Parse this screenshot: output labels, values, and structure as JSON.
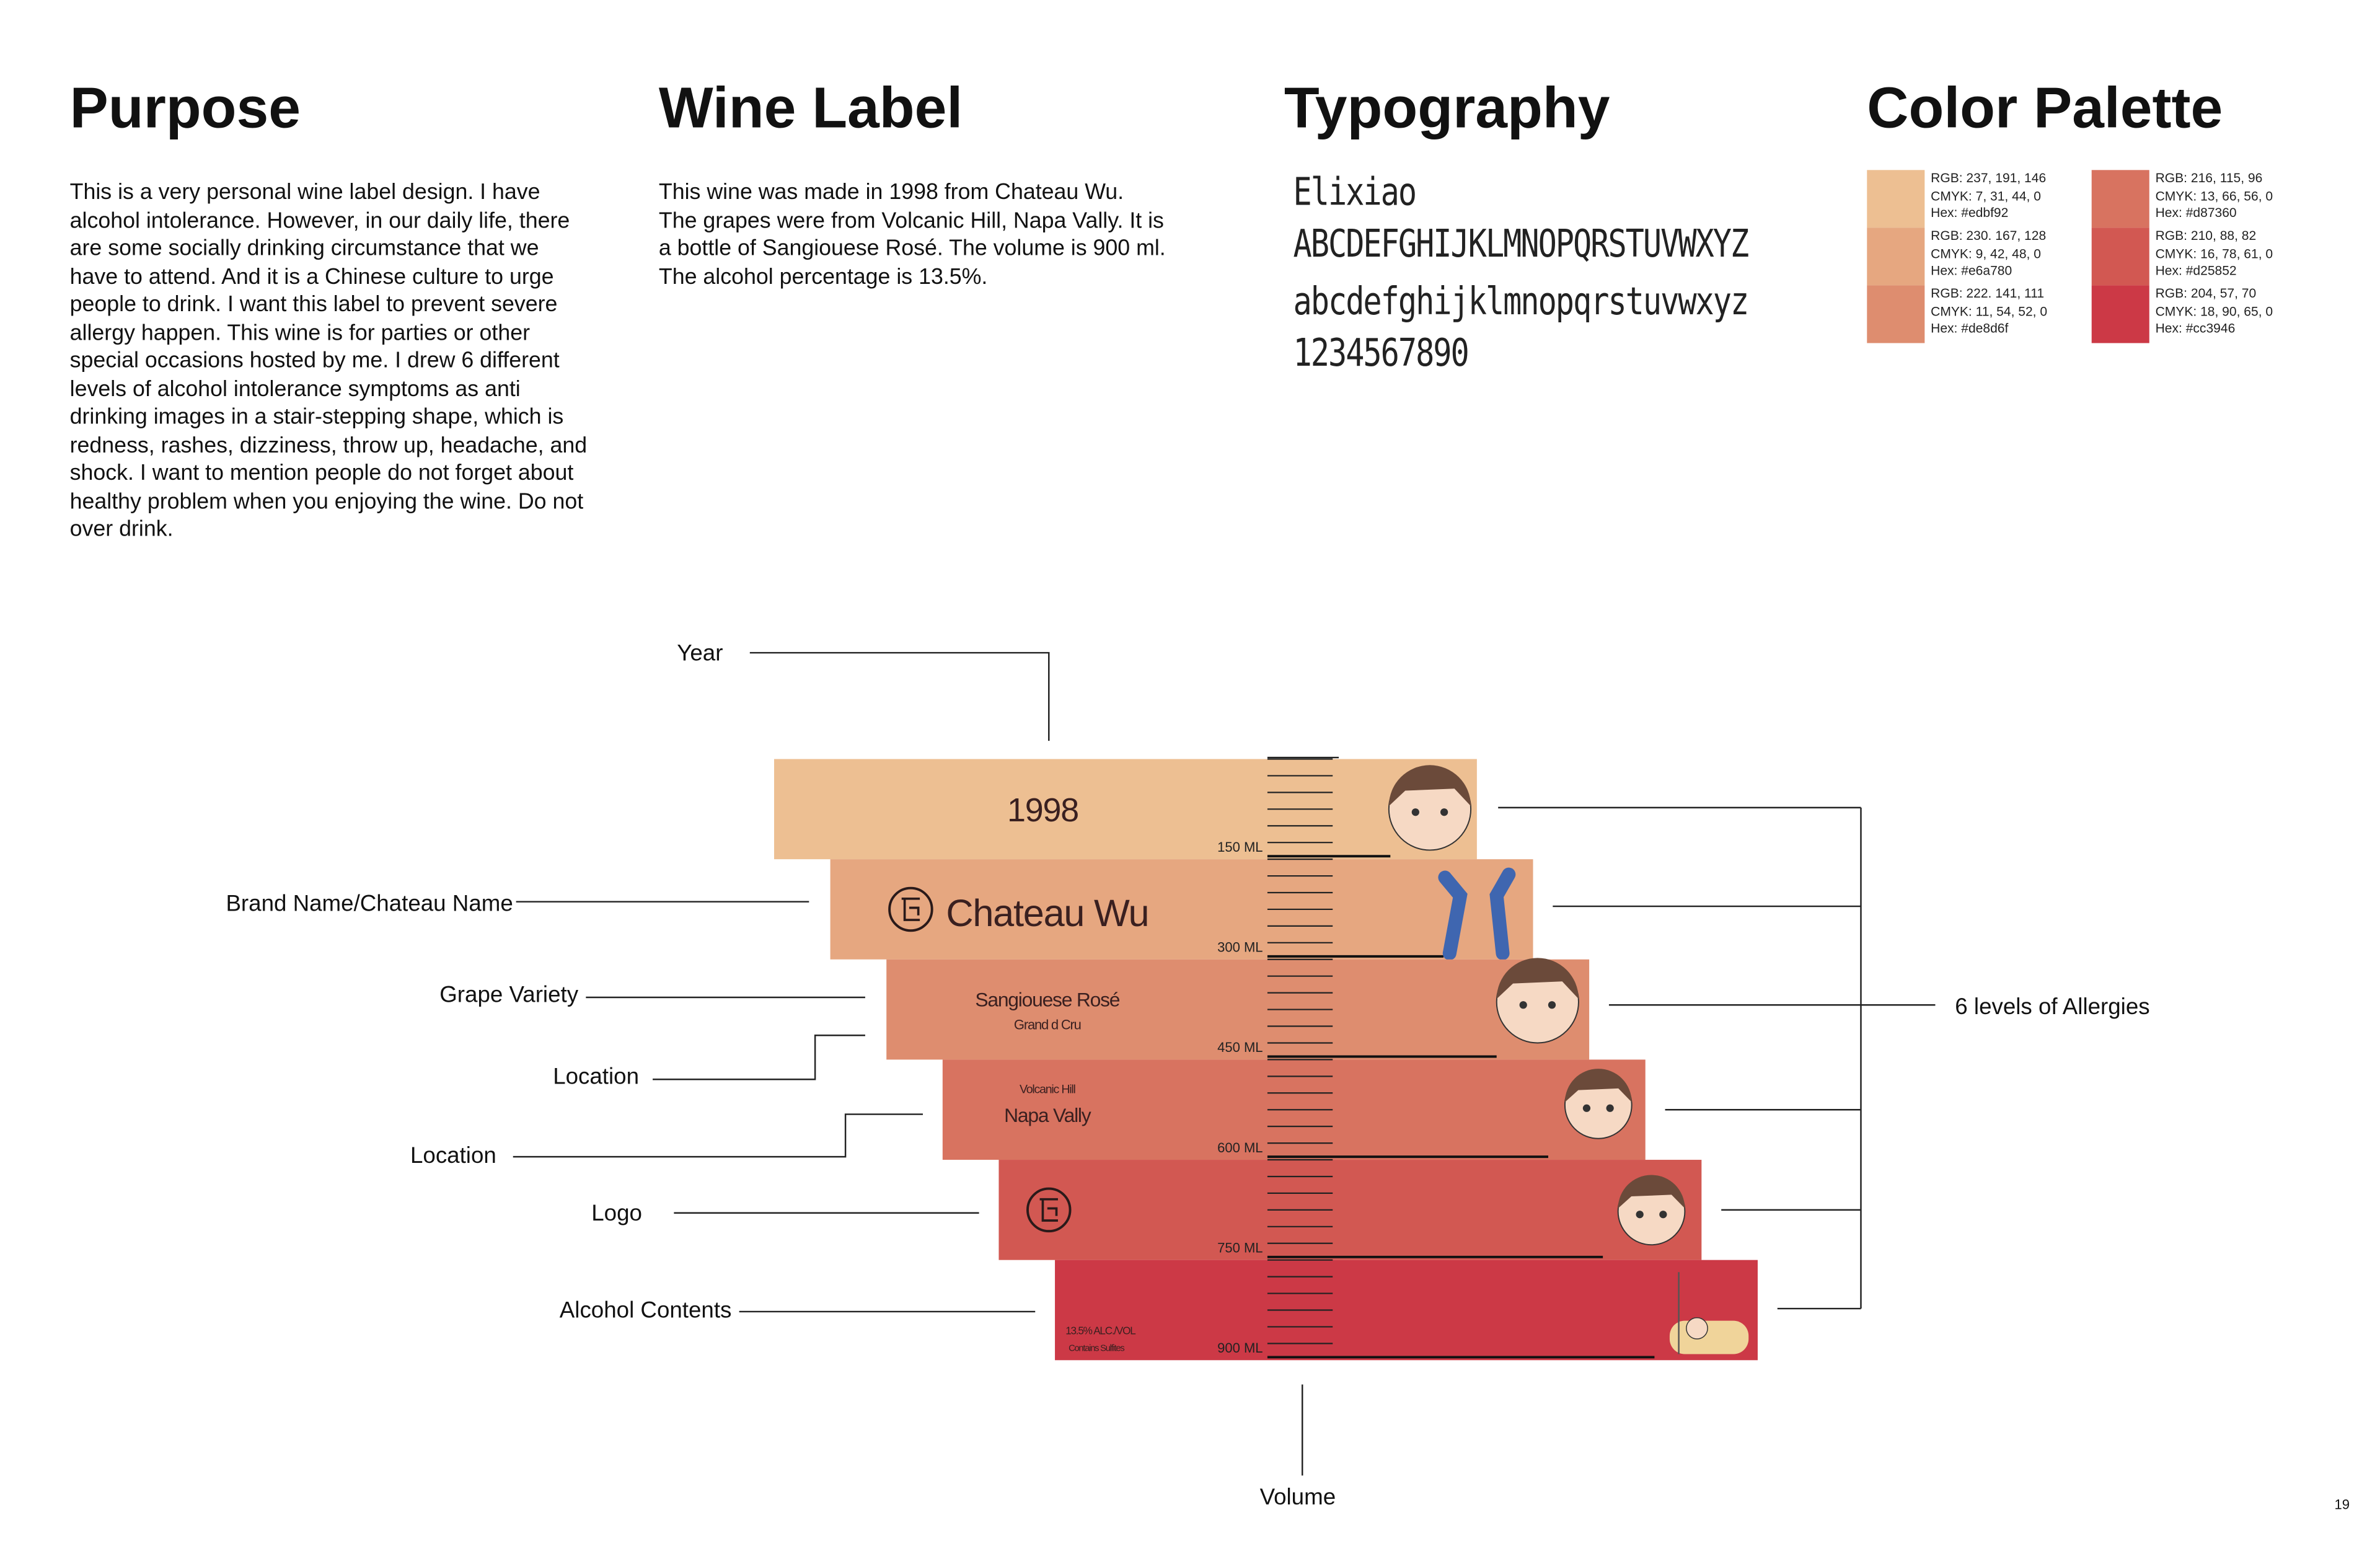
{
  "sections": [
    {
      "title": "Purpose",
      "text": "This is a very personal wine label design. I have alcohol intolerance. However, in our daily life, there are some socially drinking circumstance that we have to attend. And it is a Chinese culture to urge people to drink. I want this label to prevent severe allergy happen. This wine is for parties or other special occasions hosted by me. I drew 6 different levels of alcohol intolerance symptoms as anti drinking images in a stair-stepping shape, which is redness, rashes, dizziness, throw up, headache, and shock. I want to mention people do not forget about healthy problem when you enjoying the wine. Do not over drink."
    },
    {
      "title": "Wine Label",
      "text": "This wine was made in 1998 from Chateau Wu. The grapes were from Volcanic Hill, Napa Vally. It is a bottle of Sangiouese Rosé. The volume is 900 ml. The alcohol percentage is 13.5%."
    }
  ],
  "typography": {
    "title": "Typography",
    "samples": [
      "Elixiao",
      "ABCDEFGHIJKLMNOPQRSTUVWXYZ",
      "abcdefghijklmnopqrstuvwxyz",
      "1234567890"
    ]
  },
  "palette": {
    "title": "Color Palette",
    "swatches": [
      {
        "color": "#edbf92",
        "rgb": "RGB: 237, 191, 146",
        "cmyk": "CMYK: 7, 31, 44, 0",
        "hex": "Hex: #edbf92"
      },
      {
        "color": "#e6a780",
        "rgb": "RGB: 230. 167, 128",
        "cmyk": "CMYK: 9, 42, 48, 0",
        "hex": "Hex: #e6a780"
      },
      {
        "color": "#de8d6f",
        "rgb": "RGB: 222. 141, 111",
        "cmyk": "CMYK: 11, 54, 52, 0",
        "hex": "Hex: #de8d6f"
      },
      {
        "color": "#d87360",
        "rgb": "RGB: 216, 115, 96",
        "cmyk": "CMYK: 13, 66, 56, 0",
        "hex": "Hex: #d87360"
      },
      {
        "color": "#d25852",
        "rgb": "RGB: 210, 88, 82",
        "cmyk": "CMYK: 16, 78, 61, 0",
        "hex": "Hex: #d25852"
      },
      {
        "color": "#cc3946",
        "rgb": "RGB: 204, 57, 70",
        "cmyk": "CMYK: 18, 90, 65, 0",
        "hex": "Hex: #cc3946"
      }
    ]
  },
  "label_bands": [
    {
      "texts": [
        "1998"
      ],
      "volume": "150 ML"
    },
    {
      "texts": [
        "Chateau Wu"
      ],
      "volume": "300 ML"
    },
    {
      "texts": [
        "Sangiouese Rosé",
        "Grand d Cru"
      ],
      "volume": "450 ML"
    },
    {
      "texts": [
        "Volcanic Hill",
        "Napa Vally"
      ],
      "volume": "600 ML"
    },
    {
      "texts": [],
      "volume": "750 ML"
    },
    {
      "texts": [
        "13.5% ALC./VOL",
        "Contains Sulfites"
      ],
      "volume": "900 ML"
    }
  ],
  "callouts": [
    "Year",
    "Brand Name/Chateau Name",
    "Grape Variety",
    "Location",
    "Location",
    "Logo",
    "Alcohol Contents"
  ],
  "allergies": "6 levels of Allergies",
  "volume_label": "Volume",
  "page_number": "19"
}
